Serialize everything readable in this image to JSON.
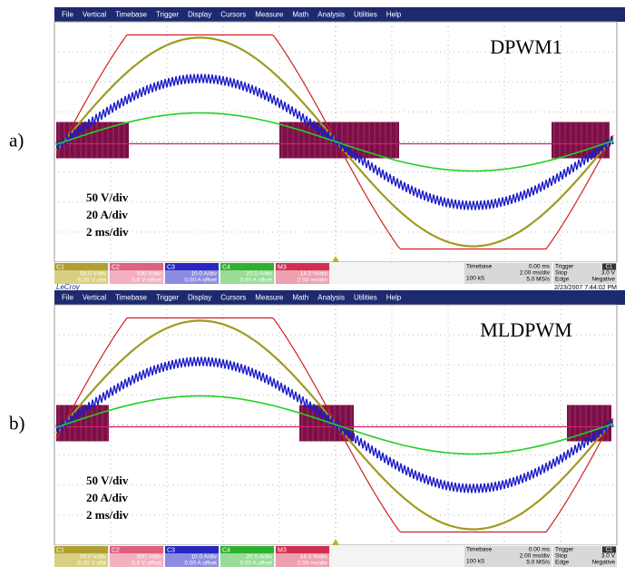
{
  "panels": [
    {
      "label": "a)",
      "title": "DPWM1",
      "menu": [
        "File",
        "Vertical",
        "Timebase",
        "Trigger",
        "Display",
        "Cursors",
        "Measure",
        "Math",
        "Analysis",
        "Utilities",
        "Help"
      ],
      "scale_notes": [
        "50 V/div",
        "20 A/div",
        "2 ms/div"
      ],
      "channels": [
        {
          "name": "C1",
          "scale": "50.0 V/div",
          "offset": "-5.00 V ofst"
        },
        {
          "name": "C2",
          "scale": "500 V/div",
          "offset": "0.0 V offset"
        },
        {
          "name": "C3",
          "scale": "10.0 A/div",
          "offset": "0.00 A offset"
        },
        {
          "name": "C4",
          "scale": "20.0 A/div",
          "offset": "0.00 A offset"
        },
        {
          "name": "M3",
          "scale": "14.0 %/div",
          "offset": "2.00 ms/div"
        }
      ],
      "timebase": {
        "label": "Timebase",
        "delay": "0.00 ms",
        "samples": "100 kS",
        "div": "2.00 ms/div",
        "rate": "5.0 MS/s"
      },
      "trigger": {
        "label": "Trigger",
        "source": "C1",
        "mode": "Stop",
        "level": "3.0 V",
        "type": "Edge",
        "slope": "Negative"
      },
      "footer": {
        "brand": "LeCroy",
        "timestamp": "2/23/2007 7:44:02 PM"
      }
    },
    {
      "label": "b)",
      "title": "MLDPWM",
      "menu": [
        "File",
        "Vertical",
        "Timebase",
        "Trigger",
        "Display",
        "Cursors",
        "Measure",
        "Math",
        "Analysis",
        "Utilities",
        "Help"
      ],
      "scale_notes": [
        "50 V/div",
        "20 A/div",
        "2 ms/div"
      ],
      "channels": [
        {
          "name": "C1",
          "scale": "50.0 V/div",
          "offset": "-5.00 V ofst"
        },
        {
          "name": "C2",
          "scale": "500 V/div",
          "offset": "0.0 V offset"
        },
        {
          "name": "C3",
          "scale": "10.0 A/div",
          "offset": "0.00 A offset"
        },
        {
          "name": "C4",
          "scale": "20.0 A/div",
          "offset": "0.00 A offset"
        },
        {
          "name": "M3",
          "scale": "14.0 %/div",
          "offset": "2.00 ms/div"
        }
      ],
      "timebase": {
        "label": "Timebase",
        "delay": "0.00 ms",
        "samples": "100 kS",
        "div": "2.00 ms/div",
        "rate": "5.0 MS/s"
      },
      "trigger": {
        "label": "Trigger",
        "source": "C1",
        "mode": "Stop",
        "level": "3.0 V",
        "type": "Edge",
        "slope": "Negative"
      }
    }
  ]
}
